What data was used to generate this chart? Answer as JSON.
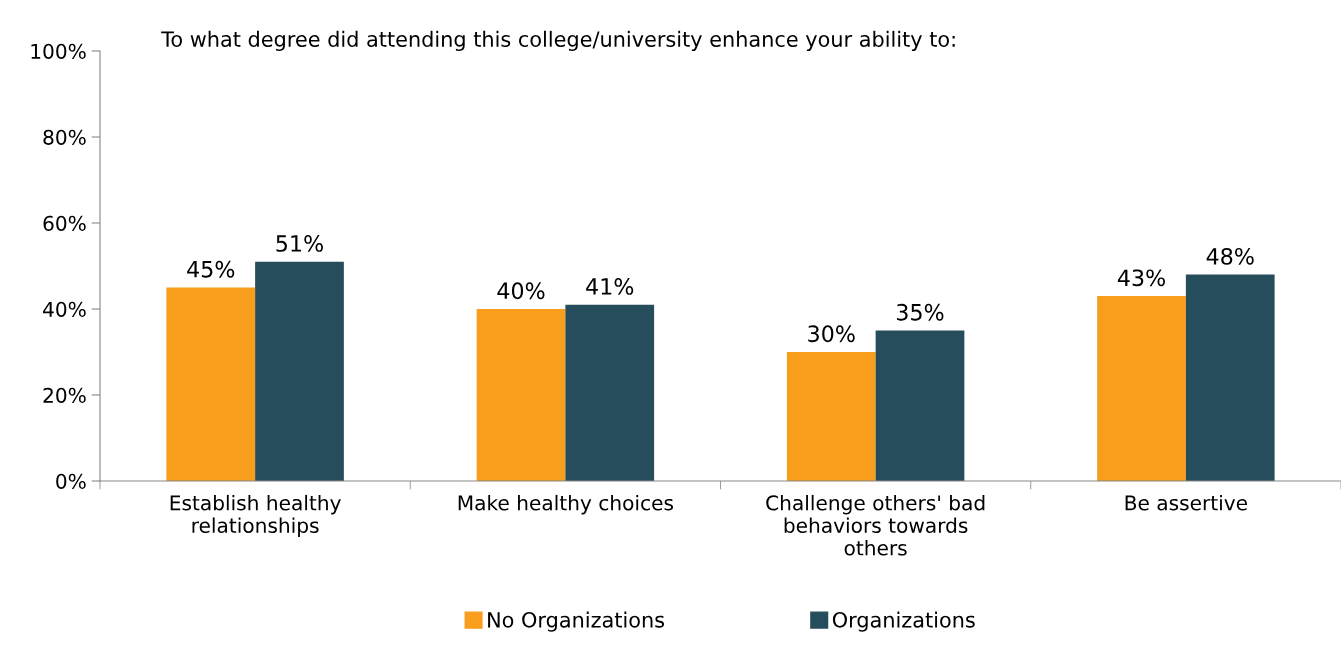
{
  "chart_data": {
    "type": "bar",
    "title": "To what degree did attending this college/university enhance your ability to:",
    "categories": [
      "Establish healthy\nrelationships",
      "Make healthy choices",
      "Challenge others' bad\nbehaviors towards\nothers",
      "Be assertive"
    ],
    "series": [
      {
        "name": "No Organizations",
        "color": "#f99d1c",
        "values": [
          45,
          40,
          30,
          43
        ],
        "value_labels": [
          "45%",
          "40%",
          "30%",
          "43%"
        ]
      },
      {
        "name": "Organizations",
        "color": "#264d5c",
        "values": [
          51,
          41,
          35,
          48
        ],
        "value_labels": [
          "51%",
          "41%",
          "35%",
          "48%"
        ]
      }
    ],
    "ylim": [
      0,
      100
    ],
    "yticks": [
      {
        "value": 0,
        "label": "0%"
      },
      {
        "value": 20,
        "label": "20%"
      },
      {
        "value": 40,
        "label": "40%"
      },
      {
        "value": 60,
        "label": "60%"
      },
      {
        "value": 80,
        "label": "80%"
      },
      {
        "value": 100,
        "label": "100%"
      }
    ],
    "grid": false,
    "legend": "bottom"
  }
}
